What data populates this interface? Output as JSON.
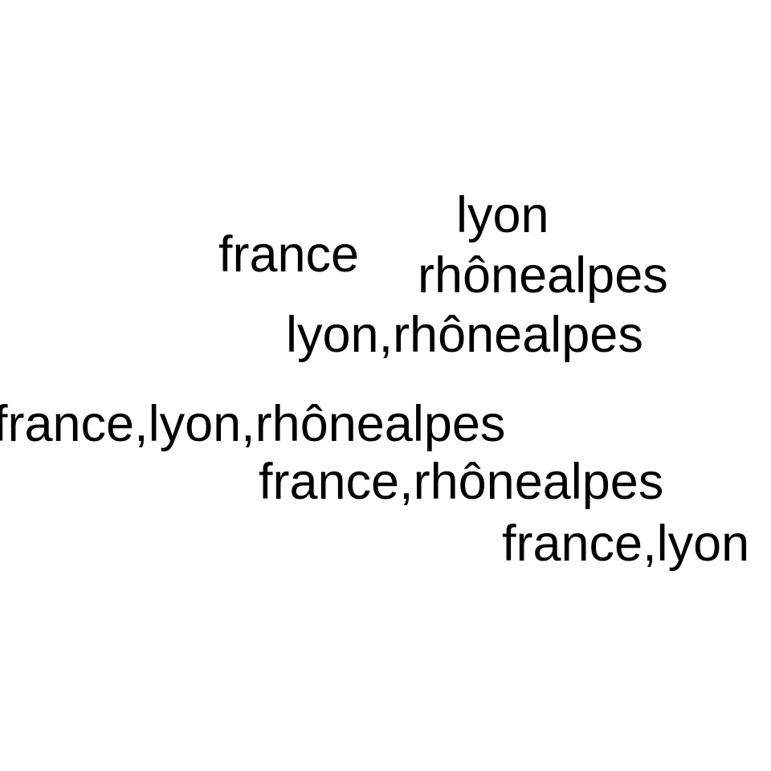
{
  "background_color": "#ffffff",
  "text_color": "#000000",
  "words": [
    "lyon",
    "france",
    "rhônealpes",
    "lyon,rhônealpes",
    "france,lyon,rhônealpes",
    "france,rhônealpes",
    "france,lyon"
  ]
}
